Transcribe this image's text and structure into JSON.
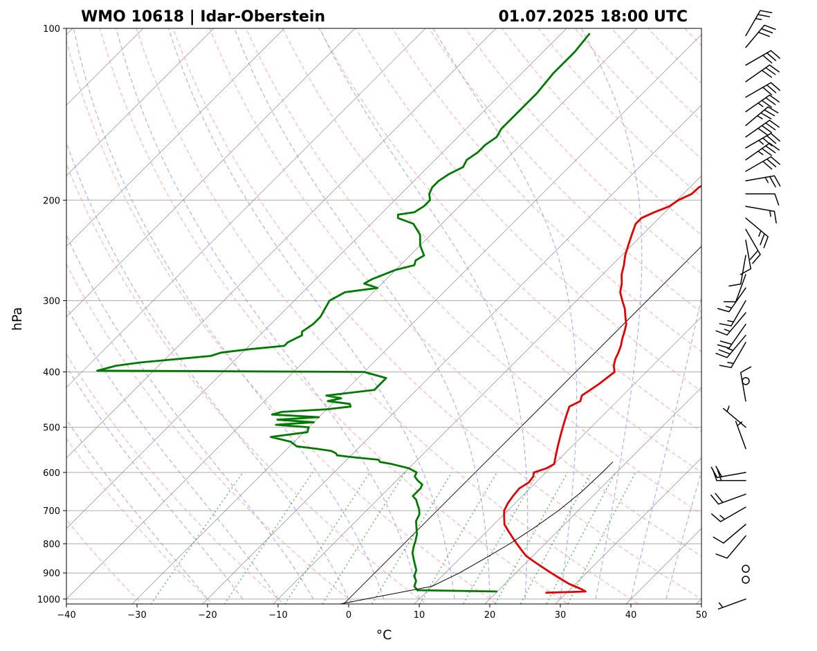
{
  "title_left": "WMO 10618 | Idar-Oberstein",
  "title_right": "01.07.2025 18:00 UTC",
  "colors": {
    "temperature": "#e60000",
    "dewpoint": "#007a00",
    "dry_adiabat": "#ff9999",
    "moist_adiabat": "#9999ff",
    "mixing_ratio": "#33aa33",
    "isotherm": "#888888",
    "isobar": "#aaaaaa"
  },
  "chart_data": {
    "type": "line",
    "diagram": "skew-T log-p",
    "xlabel": "°C",
    "ylabel": "hPa",
    "xlim": [
      -40,
      50
    ],
    "ylim": [
      1020,
      100
    ],
    "x_ticks": [
      -40,
      -30,
      -20,
      -10,
      0,
      10,
      20,
      30,
      40,
      50
    ],
    "x_tick_labels": [
      "−40",
      "−30",
      "−20",
      "−10",
      "0",
      "10",
      "20",
      "30",
      "40",
      "50"
    ],
    "y_ticks": [
      1000,
      900,
      800,
      700,
      600,
      500,
      400,
      300,
      200,
      100
    ],
    "y_tick_labels": [
      "1000",
      "900",
      "800",
      "700",
      "600",
      "500",
      "400",
      "300",
      "200",
      "100"
    ],
    "grid": true,
    "series": [
      {
        "key": "temperature",
        "pressure": [
          975,
          970,
          960,
          940,
          920,
          900,
          880,
          860,
          840,
          820,
          800,
          780,
          760,
          740,
          720,
          700,
          680,
          660,
          640,
          625,
          610,
          600,
          590,
          580,
          560,
          540,
          520,
          500,
          480,
          460,
          450,
          440,
          420,
          400,
          390,
          380,
          370,
          360,
          350,
          340,
          330,
          320,
          310,
          300,
          290,
          280,
          270,
          260,
          250,
          240,
          230,
          220,
          215,
          210,
          205,
          200,
          195,
          190,
          185,
          180,
          175,
          170,
          165,
          160,
          155,
          150,
          145,
          140,
          135,
          130,
          125,
          120,
          115,
          110,
          105,
          102
        ],
        "values": [
          27,
          32.5,
          31.5,
          29,
          27,
          25,
          23,
          21,
          19,
          17.5,
          16,
          14.5,
          13,
          11.5,
          10.5,
          9.5,
          9,
          8.7,
          8.5,
          9,
          8.8,
          8.3,
          9.5,
          10,
          9,
          8,
          7,
          6,
          5,
          4,
          4.8,
          4.2,
          5,
          5.5,
          4.5,
          3.8,
          3.3,
          2.7,
          1.9,
          1.2,
          0.4,
          -0.8,
          -2,
          -3.5,
          -5,
          -6,
          -7.3,
          -8.3,
          -9.5,
          -10.5,
          -11.5,
          -12.5,
          -12.5,
          -11.5,
          -10.2,
          -9.8,
          -8.8,
          -8.7,
          -7.8,
          -8,
          -7.8,
          -8,
          -8.5,
          -8.5,
          -8.5,
          -9,
          -9,
          -9.5,
          -10.5,
          -11,
          -12,
          -13,
          -14.5,
          -16.5,
          -18.5,
          -20.5
        ]
      },
      {
        "key": "dewpoint",
        "pressure": [
          970,
          965,
          950,
          930,
          910,
          890,
          870,
          850,
          830,
          810,
          790,
          770,
          750,
          730,
          710,
          695,
          685,
          670,
          660,
          650,
          640,
          630,
          620,
          610,
          600,
          590,
          580,
          575,
          570,
          565,
          560,
          555,
          550,
          545,
          540,
          530,
          520,
          510,
          500,
          495,
          490,
          485,
          480,
          475,
          470,
          465,
          460,
          455,
          450,
          445,
          440,
          430,
          420,
          410,
          400,
          398,
          396,
          390,
          385,
          375,
          370,
          365,
          360,
          355,
          350,
          345,
          340,
          330,
          320,
          310,
          300,
          290,
          285,
          280,
          275,
          270,
          265,
          260,
          255,
          250,
          240,
          230,
          220,
          215,
          212,
          210,
          205,
          200,
          195,
          190,
          185,
          180,
          175,
          170,
          165,
          160,
          155,
          150,
          145,
          140,
          130,
          120,
          110,
          102
        ],
        "values": [
          20,
          8.5,
          7.5,
          7,
          6,
          5.5,
          4.5,
          3.5,
          2.5,
          1.8,
          1.2,
          0.5,
          -0.5,
          -1.5,
          -2,
          -2.8,
          -3.5,
          -4.5,
          -5.5,
          -5.5,
          -5.5,
          -5.8,
          -7,
          -8,
          -8.3,
          -10,
          -13,
          -15,
          -15.5,
          -19,
          -22,
          -22.5,
          -23.5,
          -26,
          -29,
          -30.5,
          -34,
          -29.5,
          -30,
          -35,
          -30,
          -35.5,
          -30,
          -37,
          -36,
          -30,
          -27,
          -27.5,
          -31,
          -29.5,
          -32,
          -26,
          -26,
          -26,
          -30,
          -68,
          -67.5,
          -66,
          -63,
          -54,
          -53,
          -49.5,
          -45,
          -45,
          -44.5,
          -44,
          -44.5,
          -44,
          -44,
          -44.5,
          -45,
          -44,
          -40,
          -42.5,
          -42,
          -41,
          -40,
          -38,
          -38.5,
          -38,
          -40,
          -41.5,
          -44,
          -47,
          -47.5,
          -45.5,
          -45,
          -45,
          -46,
          -46.5,
          -46.5,
          -46,
          -45,
          -45.5,
          -45,
          -45,
          -44.5,
          -45,
          -45,
          -45,
          -45,
          -45.5,
          -45.5,
          -46
        ]
      },
      {
        "key": "parcel",
        "pressure": [
          1020,
          950,
          900,
          850,
          800,
          750,
          700,
          650,
          600,
          575
        ],
        "values": [
          -0.5,
          10,
          12,
          13.5,
          15,
          16.2,
          17.2,
          17.8,
          18,
          18
        ]
      }
    ],
    "wind_barbs": [
      {
        "p": 1000,
        "dir": 250,
        "kt": 5
      },
      {
        "p": 925,
        "dir": 0,
        "kt": 0
      },
      {
        "p": 885,
        "dir": 0,
        "kt": 0
      },
      {
        "p": 775,
        "dir": 220,
        "kt": 10
      },
      {
        "p": 740,
        "dir": 230,
        "kt": 10
      },
      {
        "p": 690,
        "dir": 240,
        "kt": 15
      },
      {
        "p": 655,
        "dir": 250,
        "kt": 20
      },
      {
        "p": 620,
        "dir": 270,
        "kt": 20
      },
      {
        "p": 600,
        "dir": 260,
        "kt": 20
      },
      {
        "p": 545,
        "dir": 340,
        "kt": 5
      },
      {
        "p": 500,
        "dir": 310,
        "kt": 5
      },
      {
        "p": 450,
        "dir": 350,
        "kt": 10
      },
      {
        "p": 415,
        "dir": 0,
        "kt": 0
      },
      {
        "p": 355,
        "dir": 210,
        "kt": 15
      },
      {
        "p": 345,
        "dir": 220,
        "kt": 25
      },
      {
        "p": 330,
        "dir": 215,
        "kt": 20
      },
      {
        "p": 315,
        "dir": 220,
        "kt": 15
      },
      {
        "p": 300,
        "dir": 210,
        "kt": 15
      },
      {
        "p": 285,
        "dir": 215,
        "kt": 15
      },
      {
        "p": 270,
        "dir": 200,
        "kt": 10
      },
      {
        "p": 250,
        "dir": 190,
        "kt": 10
      },
      {
        "p": 235,
        "dir": 170,
        "kt": 10
      },
      {
        "p": 225,
        "dir": 150,
        "kt": 20
      },
      {
        "p": 215,
        "dir": 130,
        "kt": 25
      },
      {
        "p": 205,
        "dir": 100,
        "kt": 15
      },
      {
        "p": 195,
        "dir": 90,
        "kt": 10
      },
      {
        "p": 185,
        "dir": 80,
        "kt": 25
      },
      {
        "p": 178,
        "dir": 60,
        "kt": 30
      },
      {
        "p": 170,
        "dir": 55,
        "kt": 35
      },
      {
        "p": 162,
        "dir": 60,
        "kt": 35
      },
      {
        "p": 155,
        "dir": 55,
        "kt": 40
      },
      {
        "p": 148,
        "dir": 50,
        "kt": 35
      },
      {
        "p": 140,
        "dir": 55,
        "kt": 35
      },
      {
        "p": 132,
        "dir": 60,
        "kt": 30
      },
      {
        "p": 124,
        "dir": 55,
        "kt": 30
      },
      {
        "p": 116,
        "dir": 60,
        "kt": 30
      },
      {
        "p": 108,
        "dir": 40,
        "kt": 30
      },
      {
        "p": 103,
        "dir": 30,
        "kt": 25
      }
    ]
  }
}
